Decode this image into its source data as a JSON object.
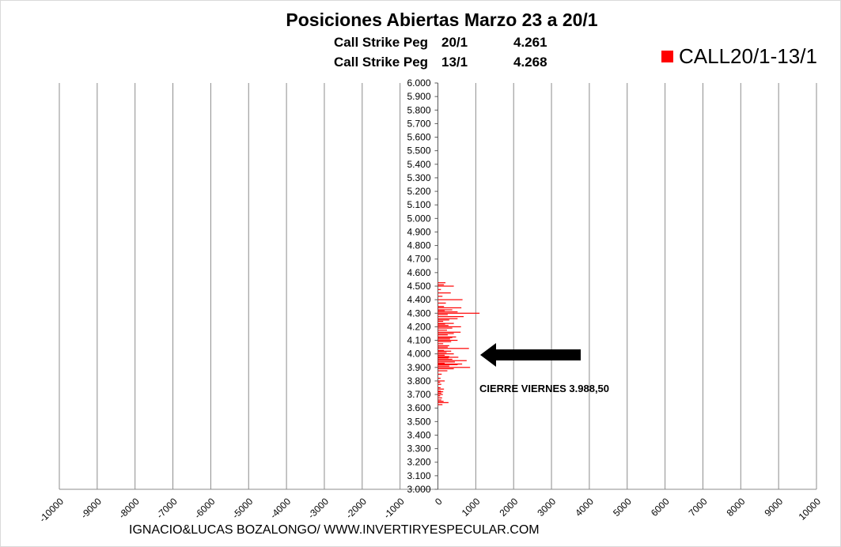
{
  "title": "Posiciones Abiertas Marzo 23 a 20/1",
  "subtitle_rows": [
    {
      "label": "Call Strike Peg",
      "date": "20/1",
      "value": "4.261"
    },
    {
      "label": "Call Strike Peg",
      "date": "13/1",
      "value": "4.268"
    }
  ],
  "footer": "IGNACIO&LUCAS BOZALONGO/ WWW.INVERTIRYESPECULAR.COM",
  "annotation": "CIERRE VIERNES 3.988,50",
  "colors": {
    "series": "#ff0000",
    "grid": "#8c8c8c",
    "arrow": "#000000"
  },
  "chart_data": {
    "type": "bar",
    "orientation": "horizontal",
    "xlim": [
      -10000,
      10000
    ],
    "x_ticks": [
      "-10000",
      "-9000",
      "-8000",
      "-7000",
      "-6000",
      "-5000",
      "-4000",
      "-3000",
      "-2000",
      "-1000",
      "0",
      "1000",
      "2000",
      "3000",
      "4000",
      "5000",
      "6000",
      "7000",
      "8000",
      "9000",
      "10000"
    ],
    "ylim": [
      3000,
      6000
    ],
    "y_ticks": [
      "3.000",
      "3.100",
      "3.200",
      "3.300",
      "3.400",
      "3.500",
      "3.600",
      "3.700",
      "3.800",
      "3.900",
      "4.000",
      "4.100",
      "4.200",
      "4.300",
      "4.400",
      "4.500",
      "4.600",
      "4.700",
      "4.800",
      "4.900",
      "5.000",
      "5.100",
      "5.200",
      "5.300",
      "5.400",
      "5.500",
      "5.600",
      "5.700",
      "5.800",
      "5.900",
      "6.000"
    ],
    "grid": "vertical",
    "legend_position": "top-right",
    "series": [
      {
        "name": "CALL20/1-13/1",
        "strikes": [
          3625,
          3640,
          3650,
          3660,
          3675,
          3690,
          3700,
          3710,
          3720,
          3725,
          3740,
          3750,
          3775,
          3790,
          3800,
          3820,
          3850,
          3875,
          3890,
          3900,
          3910,
          3920,
          3925,
          3930,
          3940,
          3950,
          3960,
          3970,
          3975,
          3980,
          3990,
          4000,
          4010,
          4020,
          4025,
          4040,
          4050,
          4060,
          4075,
          4090,
          4100,
          4110,
          4120,
          4125,
          4140,
          4150,
          4160,
          4175,
          4190,
          4200,
          4210,
          4220,
          4225,
          4240,
          4250,
          4260,
          4275,
          4290,
          4300,
          4310,
          4320,
          4325,
          4340,
          4350,
          4375,
          4400,
          4425,
          4450,
          4475,
          4500,
          4510,
          4525
        ],
        "values": [
          120,
          280,
          150,
          90,
          110,
          60,
          130,
          90,
          140,
          80,
          160,
          70,
          90,
          60,
          180,
          70,
          100,
          250,
          420,
          850,
          300,
          520,
          640,
          180,
          450,
          760,
          380,
          280,
          540,
          300,
          180,
          420,
          230,
          350,
          160,
          820,
          260,
          300,
          140,
          350,
          520,
          320,
          380,
          480,
          260,
          420,
          600,
          240,
          380,
          610,
          280,
          190,
          420,
          140,
          300,
          520,
          680,
          260,
          1100,
          520,
          180,
          380,
          620,
          160,
          210,
          650,
          120,
          340,
          80,
          420,
          160,
          200
        ]
      }
    ]
  }
}
